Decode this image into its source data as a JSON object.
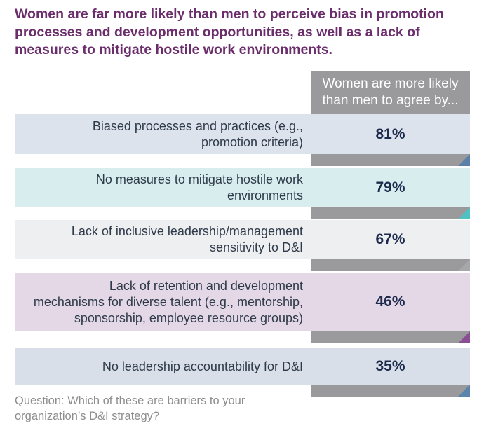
{
  "title_lines": [
    "Women are far more likely than men to perceive bias in promotion",
    "processes and development opportunities, as well as a lack of",
    "measures to mitigate hostile work environments."
  ],
  "column_header_lines": [
    "Women are more likely",
    "than men to agree by..."
  ],
  "question_lines": [
    "Question: Which of these are barriers to your",
    "organization’s D&I strategy?"
  ],
  "colors": {
    "title": "#6b2d6b",
    "header_bg": "#9a9a9c",
    "row_bg": [
      "#dde3ec",
      "#d8eeee",
      "#eeeff0",
      "#e4d8e6",
      "#d8dfe8"
    ],
    "fold": [
      "#5a7fa8",
      "#4ec1c3",
      "#a6a7a9",
      "#8a4f92",
      "#5a84ac"
    ]
  },
  "chart_data": {
    "type": "table",
    "categories": [
      "Biased processes and practices (e.g., promotion criteria)",
      "No measures to mitigate hostile work environments",
      "Lack of inclusive leadership/management sensitivity to D&I",
      "Lack of retention and development mechanisms for diverse talent (e.g., mentorship, sponsorship, employee resource groups)",
      "No leadership accountability for D&I"
    ],
    "values": [
      81,
      79,
      67,
      46,
      35
    ],
    "value_labels": [
      "81%",
      "79%",
      "67%",
      "46%",
      "35%"
    ],
    "label_lines": [
      [
        "Biased processes and practices (e.g.,",
        "promotion criteria)"
      ],
      [
        "No measures to mitigate hostile work",
        "environments"
      ],
      [
        "Lack of inclusive leadership/management",
        "sensitivity to D&I"
      ],
      [
        "Lack of retention and development",
        "mechanisms for diverse talent (e.g., mentorship,",
        "sponsorship, employee resource groups)"
      ],
      [
        "No leadership accountability for D&I"
      ]
    ]
  }
}
